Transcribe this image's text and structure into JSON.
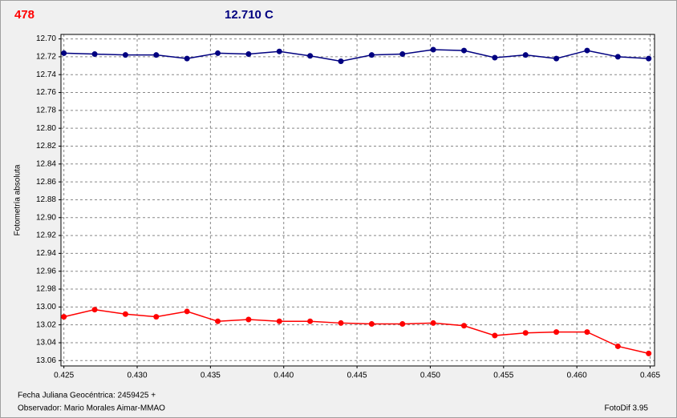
{
  "chart_data": {
    "type": "line",
    "title": "478",
    "subtitle": "12.710 C",
    "ylabel": "Fotometría absoluta",
    "footer_left_1": "Fecha Juliana Geocéntrica: 2459425 +",
    "footer_left_2": "Observador: Mario Morales Aimar-MMAO",
    "footer_right": "FotoDif 3.95",
    "x": [
      0.425,
      0.4271,
      0.4292,
      0.4313,
      0.4334,
      0.4355,
      0.4376,
      0.4397,
      0.4418,
      0.4439,
      0.446,
      0.4481,
      0.4502,
      0.4523,
      0.4544,
      0.4565,
      0.4586,
      0.4607,
      0.4628,
      0.4649
    ],
    "series": [
      {
        "color": "#000080",
        "values": [
          12.716,
          12.717,
          12.718,
          12.718,
          12.722,
          12.716,
          12.717,
          12.714,
          12.719,
          12.725,
          12.718,
          12.717,
          12.712,
          12.713,
          12.721,
          12.718,
          12.722,
          12.713,
          12.72,
          12.722
        ]
      },
      {
        "color": "#ff0000",
        "values": [
          13.011,
          13.003,
          13.008,
          13.011,
          13.005,
          13.016,
          13.014,
          13.016,
          13.016,
          13.018,
          13.019,
          13.019,
          13.018,
          13.021,
          13.032,
          13.029,
          13.028,
          13.028,
          13.044,
          13.052
        ]
      }
    ],
    "xlim": [
      0.4248,
      0.4653
    ],
    "ylim": [
      13.066,
      12.695
    ],
    "xticks": [
      0.425,
      {
        "value": 0.43,
        "label": "0.430"
      },
      0.435,
      {
        "value": 0.44,
        "label": "0.440"
      },
      0.445,
      {
        "value": 0.45,
        "label": "0.450"
      },
      0.455,
      {
        "value": 0.46,
        "label": "0.460"
      },
      0.465
    ],
    "yticks": [
      {
        "value": 12.7,
        "label": "12.70"
      },
      12.72,
      12.74,
      12.76,
      12.78,
      {
        "value": 12.8,
        "label": "12.80"
      },
      12.82,
      12.84,
      12.86,
      12.88,
      {
        "value": 12.9,
        "label": "12.90"
      },
      12.92,
      12.94,
      12.96,
      12.98,
      {
        "value": 13.0,
        "label": "13.00"
      },
      13.02,
      13.04,
      13.06
    ],
    "grid": true,
    "title_color": "#ff0000",
    "subtitle_color": "#000080"
  }
}
